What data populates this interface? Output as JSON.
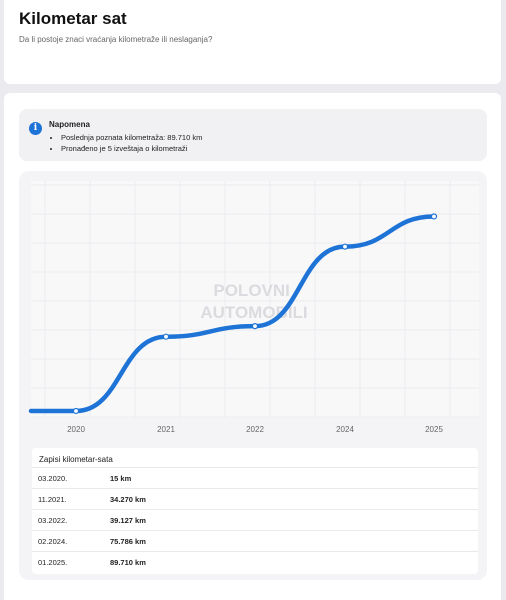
{
  "header": {
    "title": "Kilometar sat",
    "subtitle": "Da li postoje znaci vraćanja kilometraže ili neslaganja?"
  },
  "note": {
    "icon": "info-icon",
    "title": "Napomena",
    "items": [
      "Poslednja poznata kilometraža: 89.710 km",
      "Pronađeno je 5 izveštaja o kilometraži"
    ]
  },
  "chart_data": {
    "type": "line",
    "categories": [
      "2020",
      "2021",
      "2022",
      "2024",
      "2025"
    ],
    "values": [
      15,
      34270,
      39127,
      75786,
      89710
    ],
    "color": "#1e73d6",
    "grid": true,
    "ylim": [
      0,
      95000
    ],
    "watermark": "POLOVNI AUTOMOBILI"
  },
  "table": {
    "title": "Zapisi kilometar-sata",
    "rows": [
      {
        "date": "03.2020.",
        "value": "15 km"
      },
      {
        "date": "11.2021.",
        "value": "34.270 km"
      },
      {
        "date": "03.2022.",
        "value": "39.127 km"
      },
      {
        "date": "02.2024.",
        "value": "75.786 km"
      },
      {
        "date": "01.2025.",
        "value": "89.710 km"
      }
    ]
  }
}
